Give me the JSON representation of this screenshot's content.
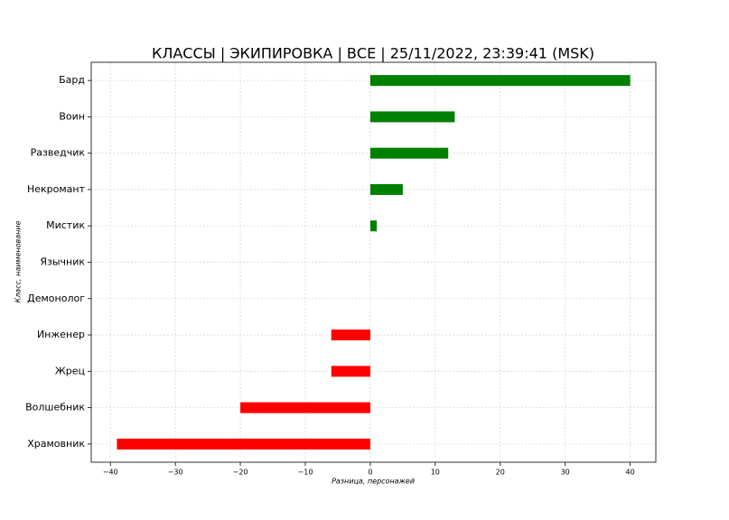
{
  "chart_data": {
    "type": "barh",
    "title": "КЛАССЫ | ЭКИПИРОВКА | ВСЕ | 25/11/2022, 23:39:41 (MSK)",
    "x_label": "Разница, персонажей",
    "y_label": "Класс, наименование",
    "categories": [
      "Бард",
      "Воин",
      "Разведчик",
      "Некромант",
      "Мистик",
      "Язычник",
      "Демонолог",
      "Инженер",
      "Жрец",
      "Волшебник",
      "Храмовник"
    ],
    "values": [
      40,
      13,
      12,
      5,
      1,
      0,
      0,
      -6,
      -6,
      -20,
      -39
    ],
    "colors": [
      "green",
      "green",
      "green",
      "green",
      "green",
      "green",
      "green",
      "red",
      "red",
      "red",
      "red"
    ],
    "xlim": [
      -42.95,
      43.95
    ],
    "xticks": [
      {
        "value": -40,
        "label": "−40"
      },
      {
        "value": -30,
        "label": "−30"
      },
      {
        "value": -20,
        "label": "−20"
      },
      {
        "value": -10,
        "label": "−10"
      },
      0,
      10,
      20,
      30,
      40
    ],
    "grid": true
  }
}
